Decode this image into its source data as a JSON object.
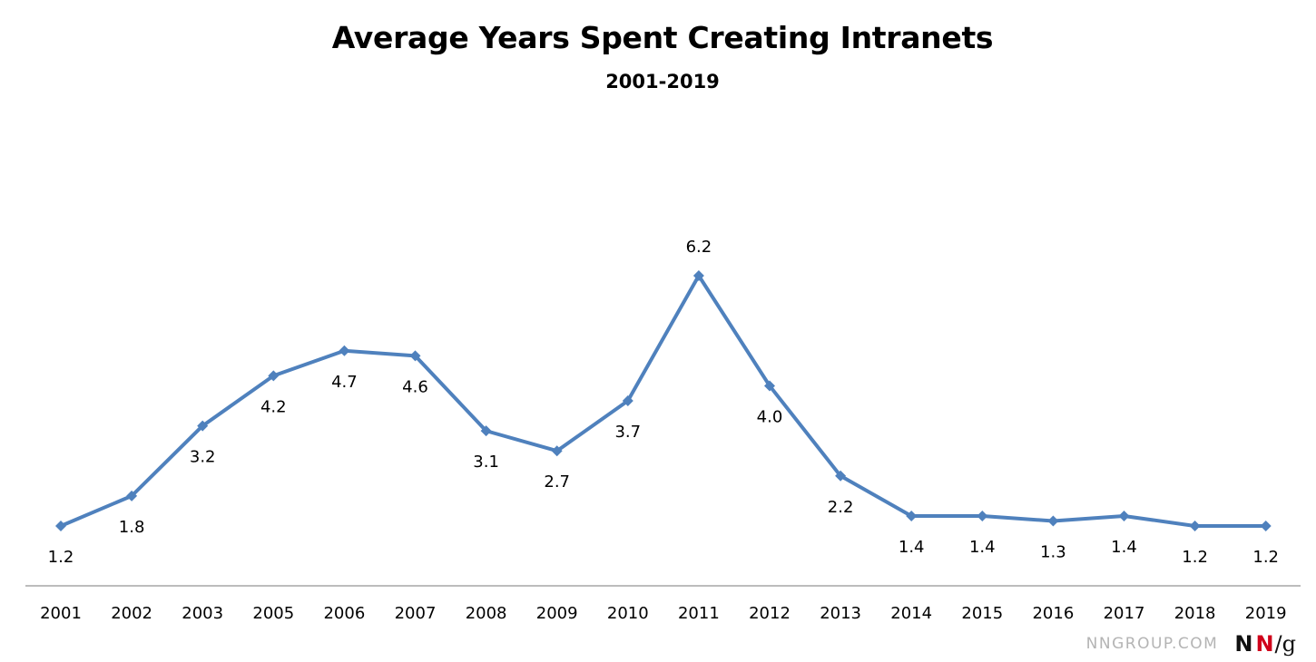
{
  "chart_data": {
    "type": "line",
    "title": "Average Years Spent Creating Intranets",
    "subtitle": "2001-2019",
    "xlabel": "",
    "ylabel": "",
    "categories": [
      "2001",
      "2002",
      "2003",
      "2005",
      "2006",
      "2007",
      "2008",
      "2009",
      "2010",
      "2011",
      "2012",
      "2013",
      "2014",
      "2015",
      "2016",
      "2017",
      "2018",
      "2019"
    ],
    "series": [
      {
        "values": [
          1.2,
          1.8,
          3.2,
          4.2,
          4.7,
          4.6,
          3.1,
          2.7,
          3.7,
          6.2,
          4.0,
          2.2,
          1.4,
          1.4,
          1.3,
          1.4,
          1.2,
          1.2
        ],
        "labels": [
          "1.2",
          "1.8",
          "3.2",
          "4.2",
          "4.7",
          "4.6",
          "3.1",
          "2.7",
          "3.7",
          "6.2",
          "4.0",
          "2.2",
          "1.4",
          "1.4",
          "1.3",
          "1.4",
          "1.2",
          "1.2"
        ],
        "label_positions": [
          "below",
          "below",
          "below",
          "below",
          "below",
          "below",
          "below",
          "below",
          "below",
          "above",
          "below",
          "below",
          "below",
          "below",
          "below",
          "below",
          "below",
          "below"
        ],
        "color": "#4f81bd",
        "marker": "diamond"
      }
    ],
    "ylim": [
      0,
      7
    ],
    "grid": false,
    "legend": "none",
    "axis_color": "#a6a6a6"
  },
  "branding": {
    "site": "NNGROUP.COM",
    "logo_n1": "N",
    "logo_n2": "N",
    "logo_slash": "/",
    "logo_g": "g",
    "accent_color": "#d0021b"
  }
}
